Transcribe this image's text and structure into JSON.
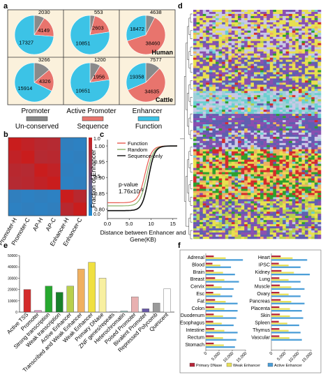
{
  "panels": {
    "a": "a",
    "b": "b",
    "c": "c",
    "d": "d",
    "e": "e",
    "f": "f"
  },
  "colors": {
    "unconserved": "#8a8a8a",
    "sequence": "#e8746d",
    "function": "#3cc3e6",
    "panel_a_bg": "#fbf1dc",
    "heat_red": "#c91d1d",
    "heat_blue": "#1f8ad0",
    "c_function": "#e85a4f",
    "c_random": "#8ab36b",
    "c_sequence": "#111111",
    "f_primary": "#b5263a",
    "f_weak": "#e8e05a",
    "f_active": "#4c9ed8"
  },
  "panel_a": {
    "rows": [
      {
        "label": "Human",
        "pies": [
          {
            "unconserved": 2030,
            "sequence": 4149,
            "function": 17327
          },
          {
            "unconserved": 553,
            "sequence": 2603,
            "function": 10851
          },
          {
            "unconserved": 4638,
            "sequence": 38460,
            "function": 18472
          }
        ]
      },
      {
        "label": "Cattle",
        "pies": [
          {
            "unconserved": 3266,
            "sequence": 4326,
            "function": 15914
          },
          {
            "unconserved": 1200,
            "sequence": 1956,
            "function": 10651
          },
          {
            "unconserved": 7577,
            "sequence": 34635,
            "function": 19358
          }
        ]
      }
    ],
    "columns": [
      "Promoter",
      "Active Promoter",
      "Enhancer"
    ],
    "legend": [
      "Un-conserved",
      "Sequence",
      "Function"
    ]
  },
  "chart_data": [
    {
      "type": "pie",
      "categories": [
        "Un-conserved",
        "Sequence",
        "Function"
      ],
      "series": [
        {
          "name": "Human Promoter",
          "values": [
            2030,
            4149,
            17327
          ]
        },
        {
          "name": "Human Active Promoter",
          "values": [
            553,
            2603,
            10851
          ]
        },
        {
          "name": "Human Enhancer",
          "values": [
            4638,
            38460,
            18472
          ]
        },
        {
          "name": "Cattle Promoter",
          "values": [
            3266,
            4326,
            15914
          ]
        },
        {
          "name": "Cattle Active Promoter",
          "values": [
            1200,
            1956,
            10651
          ]
        },
        {
          "name": "Cattle Enhancer",
          "values": [
            7577,
            34635,
            19358
          ]
        }
      ]
    },
    {
      "type": "heatmap",
      "labels": [
        "Promoter-H",
        "Promoter-C",
        "AP-H",
        "AP-C",
        "Enhancer-H",
        "Enhancer-C"
      ],
      "values": [
        [
          1.0,
          0.95,
          0.9,
          0.88,
          0.1,
          0.08
        ],
        [
          0.95,
          1.0,
          0.88,
          0.9,
          0.08,
          0.1
        ],
        [
          0.9,
          0.88,
          1.0,
          0.95,
          0.1,
          0.08
        ],
        [
          0.88,
          0.9,
          0.95,
          1.0,
          0.08,
          0.1
        ],
        [
          0.1,
          0.08,
          0.1,
          0.08,
          1.0,
          0.9
        ],
        [
          0.08,
          0.1,
          0.08,
          0.1,
          0.9,
          1.0
        ]
      ],
      "scale_ticks": [
        "1.0",
        "0.5",
        "0.0"
      ]
    },
    {
      "type": "line",
      "xlabel": "Distance between Enhancer and Gene(KB)",
      "ylabel": "Fraction of Enhancer",
      "xlim": [
        0,
        16
      ],
      "ylim": [
        0.77,
        1.02
      ],
      "xticks": [
        "0.0",
        "5.0",
        "10",
        "15"
      ],
      "yticks": [
        "0.80",
        "0.85",
        "0.90",
        "0.95",
        "1.00"
      ],
      "annotation": "p-value",
      "annotation2": "1.76x10",
      "annotation2_sup": "-9",
      "series": [
        {
          "name": "Function",
          "start": 0.82,
          "mid": 8.6,
          "k": 1.3
        },
        {
          "name": "Random",
          "start": 0.81,
          "mid": 9.0,
          "k": 1.3
        },
        {
          "name": "Sequence-only",
          "start": 0.795,
          "mid": 9.4,
          "k": 1.4
        }
      ]
    },
    {
      "type": "bar",
      "categories": [
        "Active TSS",
        "Promoter",
        "Strong transcription",
        "Weak transcription",
        "Active Enhancer",
        "Transcribed and Weak Enhancer",
        "Weak Enhancer",
        "Primary DNase",
        "ZNF genes/repeats",
        "Heterochromatin",
        "Poised Promoter",
        "Bivalent Promoter",
        "Repressed Polycomb",
        "Quescent"
      ],
      "values": [
        20000,
        1500,
        23000,
        17500,
        23000,
        38000,
        44000,
        30000,
        500,
        1000,
        13500,
        3000,
        8000,
        20500
      ],
      "colors": [
        "#d42b2b",
        "#e0a0c8",
        "#27a82f",
        "#18802a",
        "#b8d04c",
        "#f0b060",
        "#f0e040",
        "#f8f0a0",
        "#e8e8e8",
        "#9fc8c0",
        "#e8b0b0",
        "#6a5aa8",
        "#9a9a9a",
        "#ffffff"
      ],
      "ylim": [
        0,
        50000
      ],
      "yticks": [
        "0",
        "10000",
        "20000",
        "30000",
        "40000",
        "50000"
      ]
    },
    {
      "type": "bar",
      "orientation": "horizontal",
      "series_names": [
        "Primary DNase",
        "Weak Enhancer",
        "Active Enhancer"
      ],
      "groups": [
        {
          "categories": [
            "Adrenal",
            "Blood",
            "Brain",
            "Breast",
            "Cervix",
            "Esc",
            "Fat",
            "Colon",
            "Duodenum",
            "Esophagus",
            "Intestine",
            "Rectum",
            "Stomach"
          ],
          "values": [
            [
              3000,
              7500,
              14000
            ],
            [
              2500,
              5500,
              9500
            ],
            [
              3000,
              6500,
              11000
            ],
            [
              3500,
              7000,
              12500
            ],
            [
              3000,
              6000,
              10500
            ],
            [
              2800,
              5500,
              10000
            ],
            [
              3500,
              7500,
              12000
            ],
            [
              3200,
              7000,
              12000
            ],
            [
              3000,
              6500,
              11500
            ],
            [
              2800,
              6000,
              10500
            ],
            [
              3200,
              7000,
              12000
            ],
            [
              3000,
              6500,
              11500
            ],
            [
              3000,
              6800,
              11000
            ]
          ]
        },
        {
          "categories": [
            "Heart",
            "IPSC",
            "Kidney",
            "Lung",
            "Muscle",
            "Ovary",
            "Pancreas",
            "Placenta",
            "Skin",
            "Spleen",
            "Thymus",
            "Vascular"
          ],
          "values": [
            [
              3500,
              8000,
              13500
            ],
            [
              2800,
              6500,
              11000
            ],
            [
              3800,
              8500,
              14500
            ],
            [
              3000,
              6500,
              11000
            ],
            [
              3200,
              7500,
              12500
            ],
            [
              3000,
              6500,
              11000
            ],
            [
              3500,
              7500,
              12500
            ],
            [
              3000,
              7000,
              11500
            ],
            [
              3200,
              7000,
              12000
            ],
            [
              2800,
              6000,
              10500
            ],
            [
              3000,
              6500,
              11000
            ],
            [
              3000,
              6800,
              11500
            ]
          ]
        }
      ],
      "xlim": [
        0,
        15000
      ],
      "xticks": [
        "0",
        "5,000",
        "10,000",
        "15,000"
      ]
    }
  ],
  "panel_d": {
    "palette": [
      "#e8e050",
      "#8a4fb0",
      "#9fd0d8",
      "#5f5fb0",
      "#c8c8e8",
      "#d42b2b",
      "#2ca02c",
      "#f0b060",
      "#6ad0d0",
      "#b8d04c"
    ]
  }
}
